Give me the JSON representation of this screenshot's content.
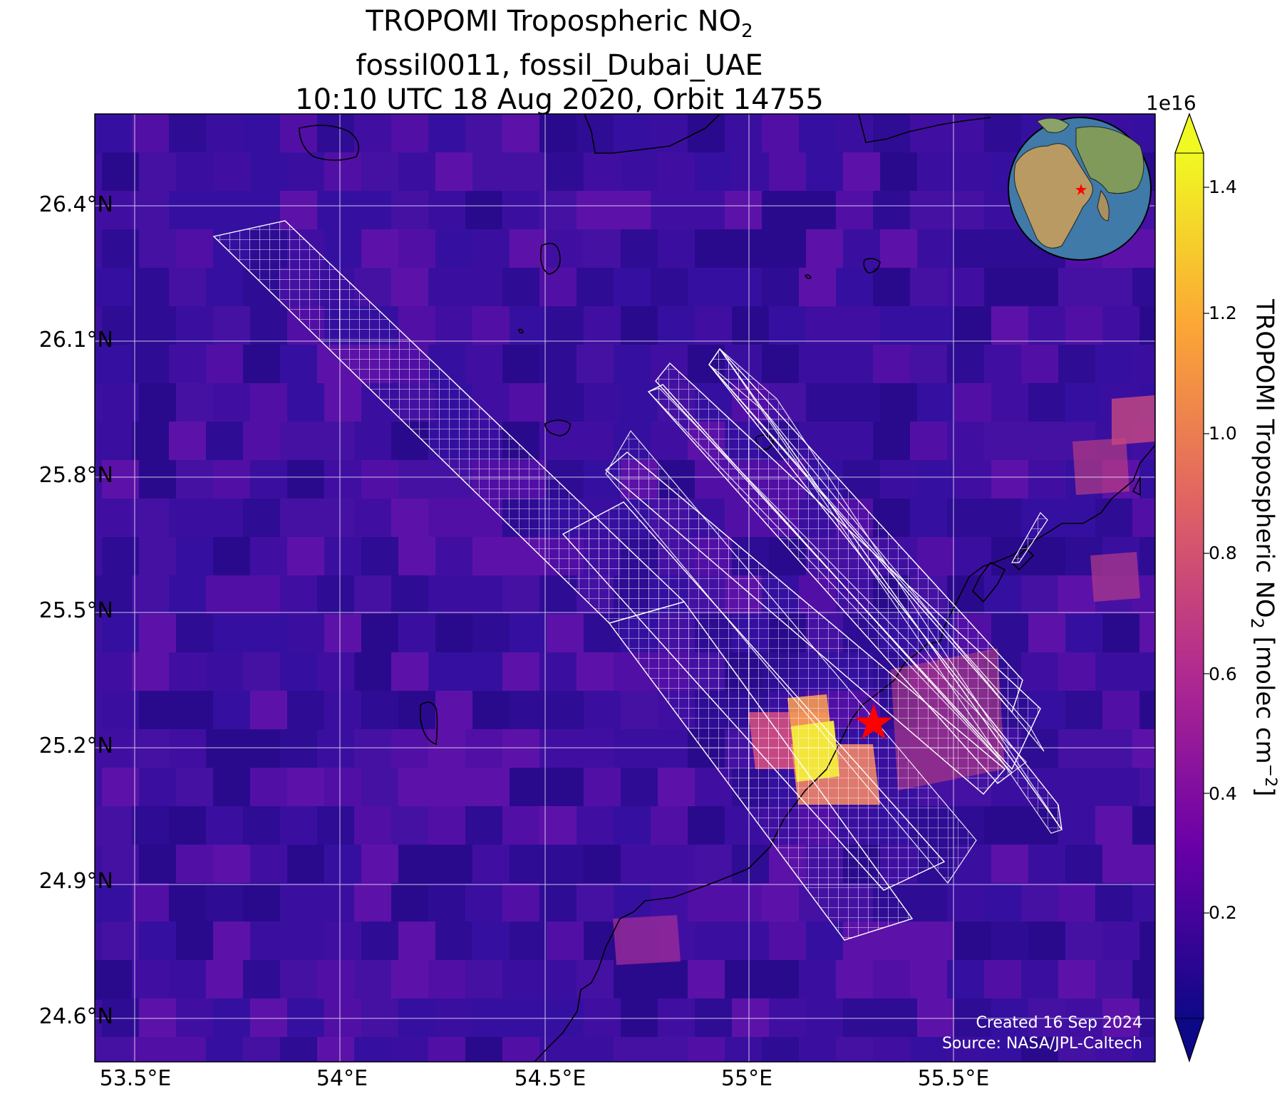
{
  "title": {
    "line1_main": "TROPOMI Tropospheric NO",
    "line1_sub": "2",
    "line2": "fossil0011, fossil_Dubai_UAE",
    "line3": "10:10 UTC 18 Aug 2020, Orbit 14755"
  },
  "map": {
    "lon_range": [
      53.4,
      55.95
    ],
    "lat_range": [
      24.5,
      26.6
    ],
    "lat_ticks": [
      "26.4°N",
      "26.1°N",
      "25.8°N",
      "25.5°N",
      "25.2°N",
      "24.9°N",
      "24.6°N"
    ],
    "lon_ticks": [
      "53.5°E",
      "54°E",
      "54.5°E",
      "55°E",
      "55.5°E"
    ],
    "target_marker": {
      "lon": 55.3,
      "lat": 25.27,
      "color": "#ff0000"
    },
    "credits": {
      "line1": "Created 16 Sep 2024",
      "line2": "Source: NASA/JPL-Caltech"
    }
  },
  "colorbar": {
    "exponent": "1e16",
    "ticks": [
      "0.2",
      "0.4",
      "0.6",
      "0.8",
      "1.0",
      "1.2",
      "1.4"
    ],
    "label_main": "TROPOMI Tropospheric NO",
    "label_sub": "2",
    "label_units": " [molec cm",
    "label_sup": "−2",
    "label_end": "]",
    "colormap": [
      "#0d0887",
      "#6a00a8",
      "#b12a90",
      "#e16462",
      "#fca636",
      "#f0f921"
    ]
  }
}
